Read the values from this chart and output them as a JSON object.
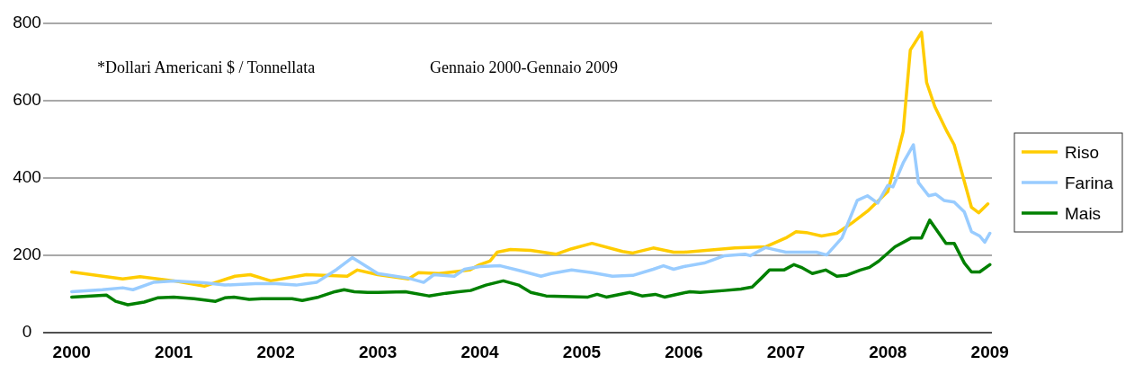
{
  "chart_data": {
    "type": "line",
    "annotations": [
      "*Dollari Americani $ / Tonnellata",
      "Gennaio 2000-Gennaio 2009"
    ],
    "xlim": [
      1999.72,
      2009.02
    ],
    "xticks": [
      2000,
      2001,
      2002,
      2003,
      2004,
      2005,
      2006,
      2007,
      2008,
      2009
    ],
    "ylim": [
      0,
      800
    ],
    "yticks": [
      0,
      200,
      400,
      600,
      800
    ],
    "grid": "y",
    "legend": "right",
    "line_style": "solid",
    "marker": "none",
    "series": [
      {
        "name": "Riso",
        "color": "#ffcc00",
        "x": [
          2000,
          2000.5,
          2000.67,
          2001,
          2001.3,
          2001.6,
          2001.75,
          2001.95,
          2002.3,
          2002.7,
          2002.8,
          2003,
          2003.3,
          2003.4,
          2003.6,
          2003.9,
          2004,
          2004.1,
          2004.17,
          2004.3,
          2004.5,
          2004.75,
          2004.9,
          2005.1,
          2005.4,
          2005.5,
          2005.7,
          2005.9,
          2006,
          2006.5,
          2006.8,
          2007,
          2007.1,
          2007.2,
          2007.35,
          2007.5,
          2007.65,
          2007.8,
          2008,
          2008.15,
          2008.22,
          2008.33,
          2008.38,
          2008.46,
          2008.58,
          2008.65,
          2008.82,
          2008.89,
          2008.98
        ],
        "values": [
          157,
          139,
          145,
          134,
          120,
          146,
          150,
          134,
          150,
          146,
          162,
          150,
          139,
          155,
          153,
          162,
          176,
          185,
          208,
          215,
          213,
          203,
          217,
          231,
          210,
          206,
          219,
          208,
          208,
          219,
          222,
          245,
          261,
          259,
          250,
          257,
          284,
          314,
          365,
          520,
          731,
          777,
          647,
          585,
          520,
          486,
          324,
          310,
          333
        ]
      },
      {
        "name": "Farina",
        "color": "#99ccff",
        "x": [
          2000,
          2000.3,
          2000.5,
          2000.6,
          2000.8,
          2001,
          2001.3,
          2001.5,
          2001.8,
          2002,
          2002.2,
          2002.4,
          2002.6,
          2002.75,
          2003,
          2003.3,
          2003.45,
          2003.55,
          2003.75,
          2003.85,
          2004,
          2004.2,
          2004.4,
          2004.6,
          2004.7,
          2004.9,
          2005.1,
          2005.3,
          2005.5,
          2005.7,
          2005.8,
          2005.9,
          2006,
          2006.2,
          2006.4,
          2006.6,
          2006.65,
          2006.8,
          2007,
          2007.3,
          2007.4,
          2007.55,
          2007.7,
          2007.8,
          2007.9,
          2008,
          2008.05,
          2008.15,
          2008.25,
          2008.3,
          2008.4,
          2008.47,
          2008.55,
          2008.65,
          2008.75,
          2008.82,
          2008.9,
          2008.95,
          2009
        ],
        "values": [
          106,
          111,
          116,
          111,
          130,
          134,
          129,
          123,
          127,
          127,
          123,
          130,
          164,
          194,
          153,
          141,
          130,
          150,
          146,
          164,
          171,
          173,
          160,
          146,
          153,
          162,
          155,
          146,
          148,
          164,
          173,
          164,
          171,
          180,
          199,
          203,
          199,
          220,
          208,
          208,
          201,
          245,
          342,
          354,
          335,
          381,
          377,
          439,
          486,
          388,
          354,
          358,
          342,
          338,
          312,
          261,
          250,
          234,
          257
        ]
      },
      {
        "name": "Mais",
        "color": "#008000",
        "x": [
          2000,
          2000.34,
          2000.43,
          2000.55,
          2000.71,
          2000.84,
          2001,
          2001.2,
          2001.41,
          2001.5,
          2001.59,
          2001.74,
          2001.86,
          2002.16,
          2002.26,
          2002.42,
          2002.58,
          2002.67,
          2002.77,
          2002.9,
          2003,
          2003.27,
          2003.5,
          2003.67,
          2003.91,
          2004.06,
          2004.23,
          2004.38,
          2004.5,
          2004.65,
          2005.06,
          2005.15,
          2005.24,
          2005.47,
          2005.59,
          2005.72,
          2005.81,
          2005.93,
          2006.06,
          2006.16,
          2006.4,
          2006.56,
          2006.67,
          2006.76,
          2006.84,
          2006.98,
          2007.08,
          2007.15,
          2007.26,
          2007.39,
          2007.5,
          2007.59,
          2007.73,
          2007.82,
          2007.91,
          2008.07,
          2008.23,
          2008.33,
          2008.41,
          2008.57,
          2008.65,
          2008.75,
          2008.82,
          2008.9,
          2009
        ],
        "values": [
          92,
          97,
          81,
          72,
          79,
          90,
          92,
          88,
          81,
          90,
          92,
          86,
          88,
          88,
          83,
          92,
          106,
          111,
          106,
          104,
          104,
          106,
          95,
          102,
          109,
          123,
          134,
          123,
          104,
          95,
          92,
          99,
          92,
          104,
          95,
          99,
          92,
          99,
          106,
          104,
          109,
          113,
          118,
          141,
          162,
          162,
          176,
          169,
          153,
          162,
          146,
          148,
          162,
          169,
          185,
          222,
          245,
          245,
          291,
          231,
          231,
          180,
          157,
          157,
          176
        ]
      }
    ]
  }
}
